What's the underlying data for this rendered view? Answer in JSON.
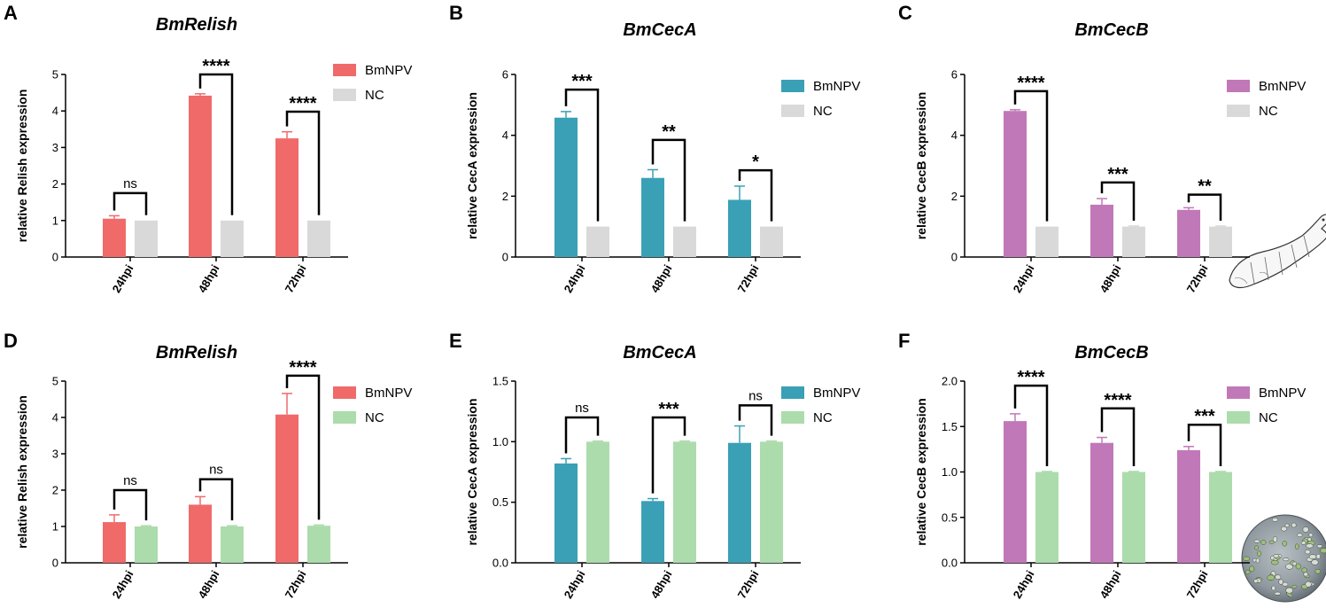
{
  "figure": {
    "colors": {
      "relish": "#f06a6a",
      "ceca": "#3aa0b5",
      "cecb": "#c178b8",
      "nc_gray": "#d9d9d9",
      "nc_green": "#acdcac",
      "axis": "#000000"
    }
  },
  "chart_data": [
    {
      "panel": "A",
      "type": "bar",
      "title": "BmRelish",
      "ylabel": "relative Relish expression",
      "categories": [
        "24hpi",
        "48hpi",
        "72hpi"
      ],
      "ylim": [
        0,
        5
      ],
      "yticks": [
        "0",
        "1",
        "2",
        "3",
        "4",
        "5"
      ],
      "series": [
        {
          "name": "BmNPV",
          "values": [
            1.05,
            4.42,
            3.25
          ],
          "errors": [
            0.08,
            0.05,
            0.18
          ],
          "color": "#f06a6a"
        },
        {
          "name": "NC",
          "values": [
            1.0,
            1.0,
            1.0
          ],
          "errors": [
            0,
            0,
            0
          ],
          "color": "#d9d9d9"
        }
      ],
      "significance": [
        {
          "label": "ns",
          "y": 1.75
        },
        {
          "label": "****",
          "y": 5.0
        },
        {
          "label": "****",
          "y": 3.98
        }
      ],
      "legend_position": "top-right"
    },
    {
      "panel": "B",
      "type": "bar",
      "title": "BmCecA",
      "ylabel": "relative CecA expression",
      "categories": [
        "24hpi",
        "48hpi",
        "72hpi"
      ],
      "ylim": [
        0,
        6
      ],
      "yticks": [
        "0",
        "2",
        "4",
        "6"
      ],
      "series": [
        {
          "name": "BmNPV",
          "values": [
            4.58,
            2.6,
            1.88
          ],
          "errors": [
            0.2,
            0.27,
            0.45
          ],
          "color": "#3aa0b5"
        },
        {
          "name": "NC",
          "values": [
            1.0,
            1.0,
            1.0
          ],
          "errors": [
            0,
            0,
            0
          ],
          "color": "#d9d9d9"
        }
      ],
      "significance": [
        {
          "label": "***",
          "y": 5.5
        },
        {
          "label": "**",
          "y": 3.85
        },
        {
          "label": "*",
          "y": 2.85
        }
      ],
      "legend_position": "top-right"
    },
    {
      "panel": "C",
      "type": "bar",
      "title": "BmCecB",
      "ylabel": "relative CecB expression",
      "categories": [
        "24hpi",
        "48hpi",
        "72hpi"
      ],
      "ylim": [
        0,
        6
      ],
      "yticks": [
        "0",
        "2",
        "4",
        "6"
      ],
      "series": [
        {
          "name": "BmNPV",
          "values": [
            4.8,
            1.72,
            1.55
          ],
          "errors": [
            0.04,
            0.2,
            0.07
          ],
          "color": "#c178b8"
        },
        {
          "name": "NC",
          "values": [
            1.0,
            1.0,
            1.0
          ],
          "errors": [
            0,
            0.02,
            0.02
          ],
          "color": "#d9d9d9"
        }
      ],
      "significance": [
        {
          "label": "****",
          "y": 5.45
        },
        {
          "label": "***",
          "y": 2.45
        },
        {
          "label": "**",
          "y": 2.05
        }
      ],
      "legend_position": "top-right"
    },
    {
      "panel": "D",
      "type": "bar",
      "title": "BmRelish",
      "ylabel": "relative Relish expression",
      "categories": [
        "24hpi",
        "48hpi",
        "72hpi"
      ],
      "ylim": [
        0,
        5
      ],
      "yticks": [
        "0",
        "1",
        "2",
        "3",
        "4",
        "5"
      ],
      "series": [
        {
          "name": "BmNPV",
          "values": [
            1.12,
            1.6,
            4.08
          ],
          "errors": [
            0.2,
            0.22,
            0.58
          ],
          "color": "#f06a6a"
        },
        {
          "name": "NC",
          "values": [
            1.0,
            1.0,
            1.02
          ],
          "errors": [
            0.02,
            0.02,
            0.02
          ],
          "color": "#acdcac"
        }
      ],
      "significance": [
        {
          "label": "ns",
          "y": 2.0
        },
        {
          "label": "ns",
          "y": 2.3
        },
        {
          "label": "****",
          "y": 5.15
        }
      ],
      "legend_position": "top-right"
    },
    {
      "panel": "E",
      "type": "bar",
      "title": "BmCecA",
      "ylabel": "relative CecA expression",
      "categories": [
        "24hpi",
        "48hpi",
        "72hpi"
      ],
      "ylim": [
        0,
        1.5
      ],
      "yticks": [
        "0.0",
        "0.5",
        "1.0",
        "1.5"
      ],
      "series": [
        {
          "name": "BmNPV",
          "values": [
            0.82,
            0.51,
            0.99
          ],
          "errors": [
            0.04,
            0.02,
            0.14
          ],
          "color": "#3aa0b5"
        },
        {
          "name": "NC",
          "values": [
            1.0,
            1.0,
            1.0
          ],
          "errors": [
            0.005,
            0.005,
            0.005
          ],
          "color": "#acdcac"
        }
      ],
      "significance": [
        {
          "label": "ns",
          "y": 1.2
        },
        {
          "label": "***",
          "y": 1.2
        },
        {
          "label": "ns",
          "y": 1.3
        }
      ],
      "legend_position": "top-right"
    },
    {
      "panel": "F",
      "type": "bar",
      "title": "BmCecB",
      "ylabel": "relative CecB expression",
      "categories": [
        "24hpi",
        "48hpi",
        "72hpi"
      ],
      "ylim": [
        0,
        2.0
      ],
      "yticks": [
        "0.0",
        "0.5",
        "1.0",
        "1.5",
        "2.0"
      ],
      "series": [
        {
          "name": "BmNPV",
          "values": [
            1.56,
            1.32,
            1.24
          ],
          "errors": [
            0.08,
            0.06,
            0.04
          ],
          "color": "#c178b8"
        },
        {
          "name": "NC",
          "values": [
            1.0,
            1.0,
            1.0
          ],
          "errors": [
            0.005,
            0.005,
            0.005
          ],
          "color": "#acdcac"
        }
      ],
      "significance": [
        {
          "label": "****",
          "y": 1.95
        },
        {
          "label": "****",
          "y": 1.7
        },
        {
          "label": "***",
          "y": 1.52
        }
      ],
      "legend_position": "top-right"
    }
  ]
}
